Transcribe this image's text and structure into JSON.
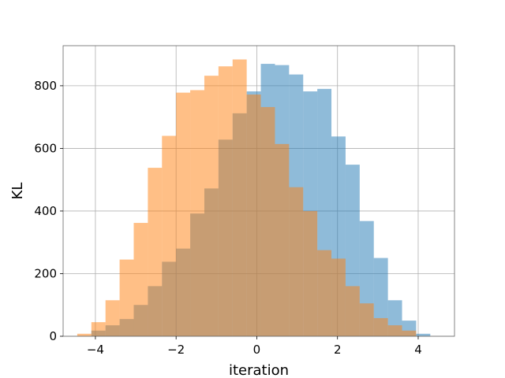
{
  "chart_data": {
    "type": "bar",
    "subtype": "overlapping-histogram",
    "title": "",
    "xlabel": "iteration",
    "ylabel": "KL",
    "xlim": [
      -4.8,
      4.9
    ],
    "ylim": [
      0,
      928
    ],
    "xticks": [
      -4,
      -2,
      0,
      2,
      4
    ],
    "yticks": [
      0,
      200,
      400,
      600,
      800
    ],
    "grid": true,
    "legend": "none",
    "bin_width": 0.35,
    "series": [
      {
        "color": "#1f77b4",
        "alpha": 0.5,
        "bin_start": -4.1,
        "values": [
          18,
          35,
          55,
          100,
          160,
          238,
          280,
          392,
          472,
          628,
          712,
          782,
          870,
          866,
          836,
          782,
          790,
          638,
          548,
          368,
          250,
          115,
          50,
          8
        ]
      },
      {
        "color": "#ff7f0e",
        "alpha": 0.5,
        "bin_start": -4.45,
        "values": [
          8,
          45,
          115,
          245,
          362,
          538,
          640,
          778,
          786,
          832,
          862,
          884,
          772,
          732,
          614,
          476,
          400,
          275,
          248,
          160,
          105,
          58,
          35,
          18
        ]
      }
    ]
  }
}
